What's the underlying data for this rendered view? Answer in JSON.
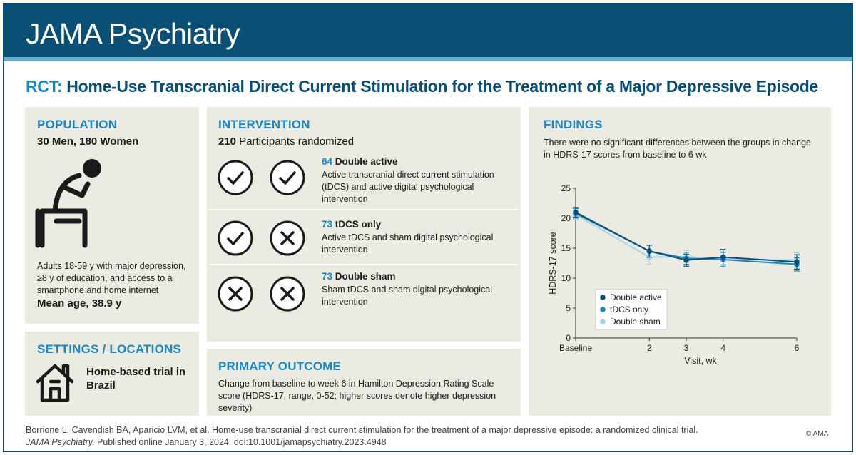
{
  "header": {
    "journal": "JAMA Psychiatry"
  },
  "title": {
    "tag": "RCT:",
    "text": " Home-Use Transcranial Direct Current Stimulation for the Treatment of a Major Depressive Episode"
  },
  "population": {
    "heading": "POPULATION",
    "subheading": "30 Men, 180 Women",
    "description": "Adults 18-59 y with major depression, ≥8 y of education, and access to a smartphone and home internet",
    "mean_age": "Mean age, 38.9 y",
    "icon": "seated-thinking-person-icon"
  },
  "settings": {
    "heading": "SETTINGS / LOCATIONS",
    "text": "Home-based trial in Brazil",
    "icon": "house-icon"
  },
  "intervention": {
    "heading": "INTERVENTION",
    "randomized_count": "210",
    "randomized_label": " Participants randomized",
    "arms": [
      {
        "count": "64",
        "name": " Double active",
        "description": "Active transcranial direct current stimulation (tDCS) and active digital psychological intervention",
        "icons": [
          "check-icon",
          "check-icon"
        ]
      },
      {
        "count": "73",
        "name": " tDCS only",
        "description": "Active tDCS and sham digital psychological intervention",
        "icons": [
          "check-icon",
          "cross-icon"
        ]
      },
      {
        "count": "73",
        "name": " Double sham",
        "description": "Sham tDCS and sham digital psychological intervention",
        "icons": [
          "cross-icon",
          "cross-icon"
        ]
      }
    ]
  },
  "outcome": {
    "heading": "PRIMARY OUTCOME",
    "description": "Change from baseline to week 6 in Hamilton Depression Rating Scale score (HDRS-17; range, 0-52; higher scores denote higher depression severity)"
  },
  "findings": {
    "heading": "FINDINGS",
    "description": "There were no significant differences between the groups in change in HDRS-17 scores from baseline to 6 wk"
  },
  "chart_data": {
    "type": "line",
    "xlabel": "Visit, wk",
    "ylabel": "HDRS-17 score",
    "x": [
      0,
      2,
      3,
      4,
      6
    ],
    "x_tick_labels": [
      "Baseline",
      "2",
      "3",
      "4",
      "6"
    ],
    "ylim": [
      0,
      25
    ],
    "y_ticks": [
      0,
      5,
      10,
      15,
      20,
      25
    ],
    "legend_position": "bottom-left",
    "grid": false,
    "series": [
      {
        "name": "Double active",
        "color": "#0b4f75",
        "values": [
          21.0,
          14.5,
          13.0,
          13.5,
          12.7
        ],
        "errors": [
          0.8,
          1.0,
          1.0,
          1.3,
          1.2
        ]
      },
      {
        "name": "tDCS only",
        "color": "#1a87c2",
        "values": [
          20.8,
          14.5,
          13.3,
          13.1,
          12.3
        ],
        "errors": [
          0.8,
          1.0,
          1.0,
          1.2,
          1.1
        ]
      },
      {
        "name": "Double sham",
        "color": "#a8d2ea",
        "values": [
          20.6,
          13.5,
          13.6,
          13.2,
          13.0
        ],
        "errors": [
          0.8,
          1.2,
          1.0,
          1.2,
          1.2
        ]
      }
    ]
  },
  "citation": {
    "line1": "Borrione L, Cavendish BA, Aparicio LVM, et al. Home-use transcranial direct current stimulation for the treatment of a major depressive episode: a randomized clinical trial.",
    "journal": "JAMA Psychiatry.",
    "line2": " Published online January 3, 2024. doi:10.1001/jamapsychiatry.2023.4948"
  },
  "copyright": "© AMA"
}
